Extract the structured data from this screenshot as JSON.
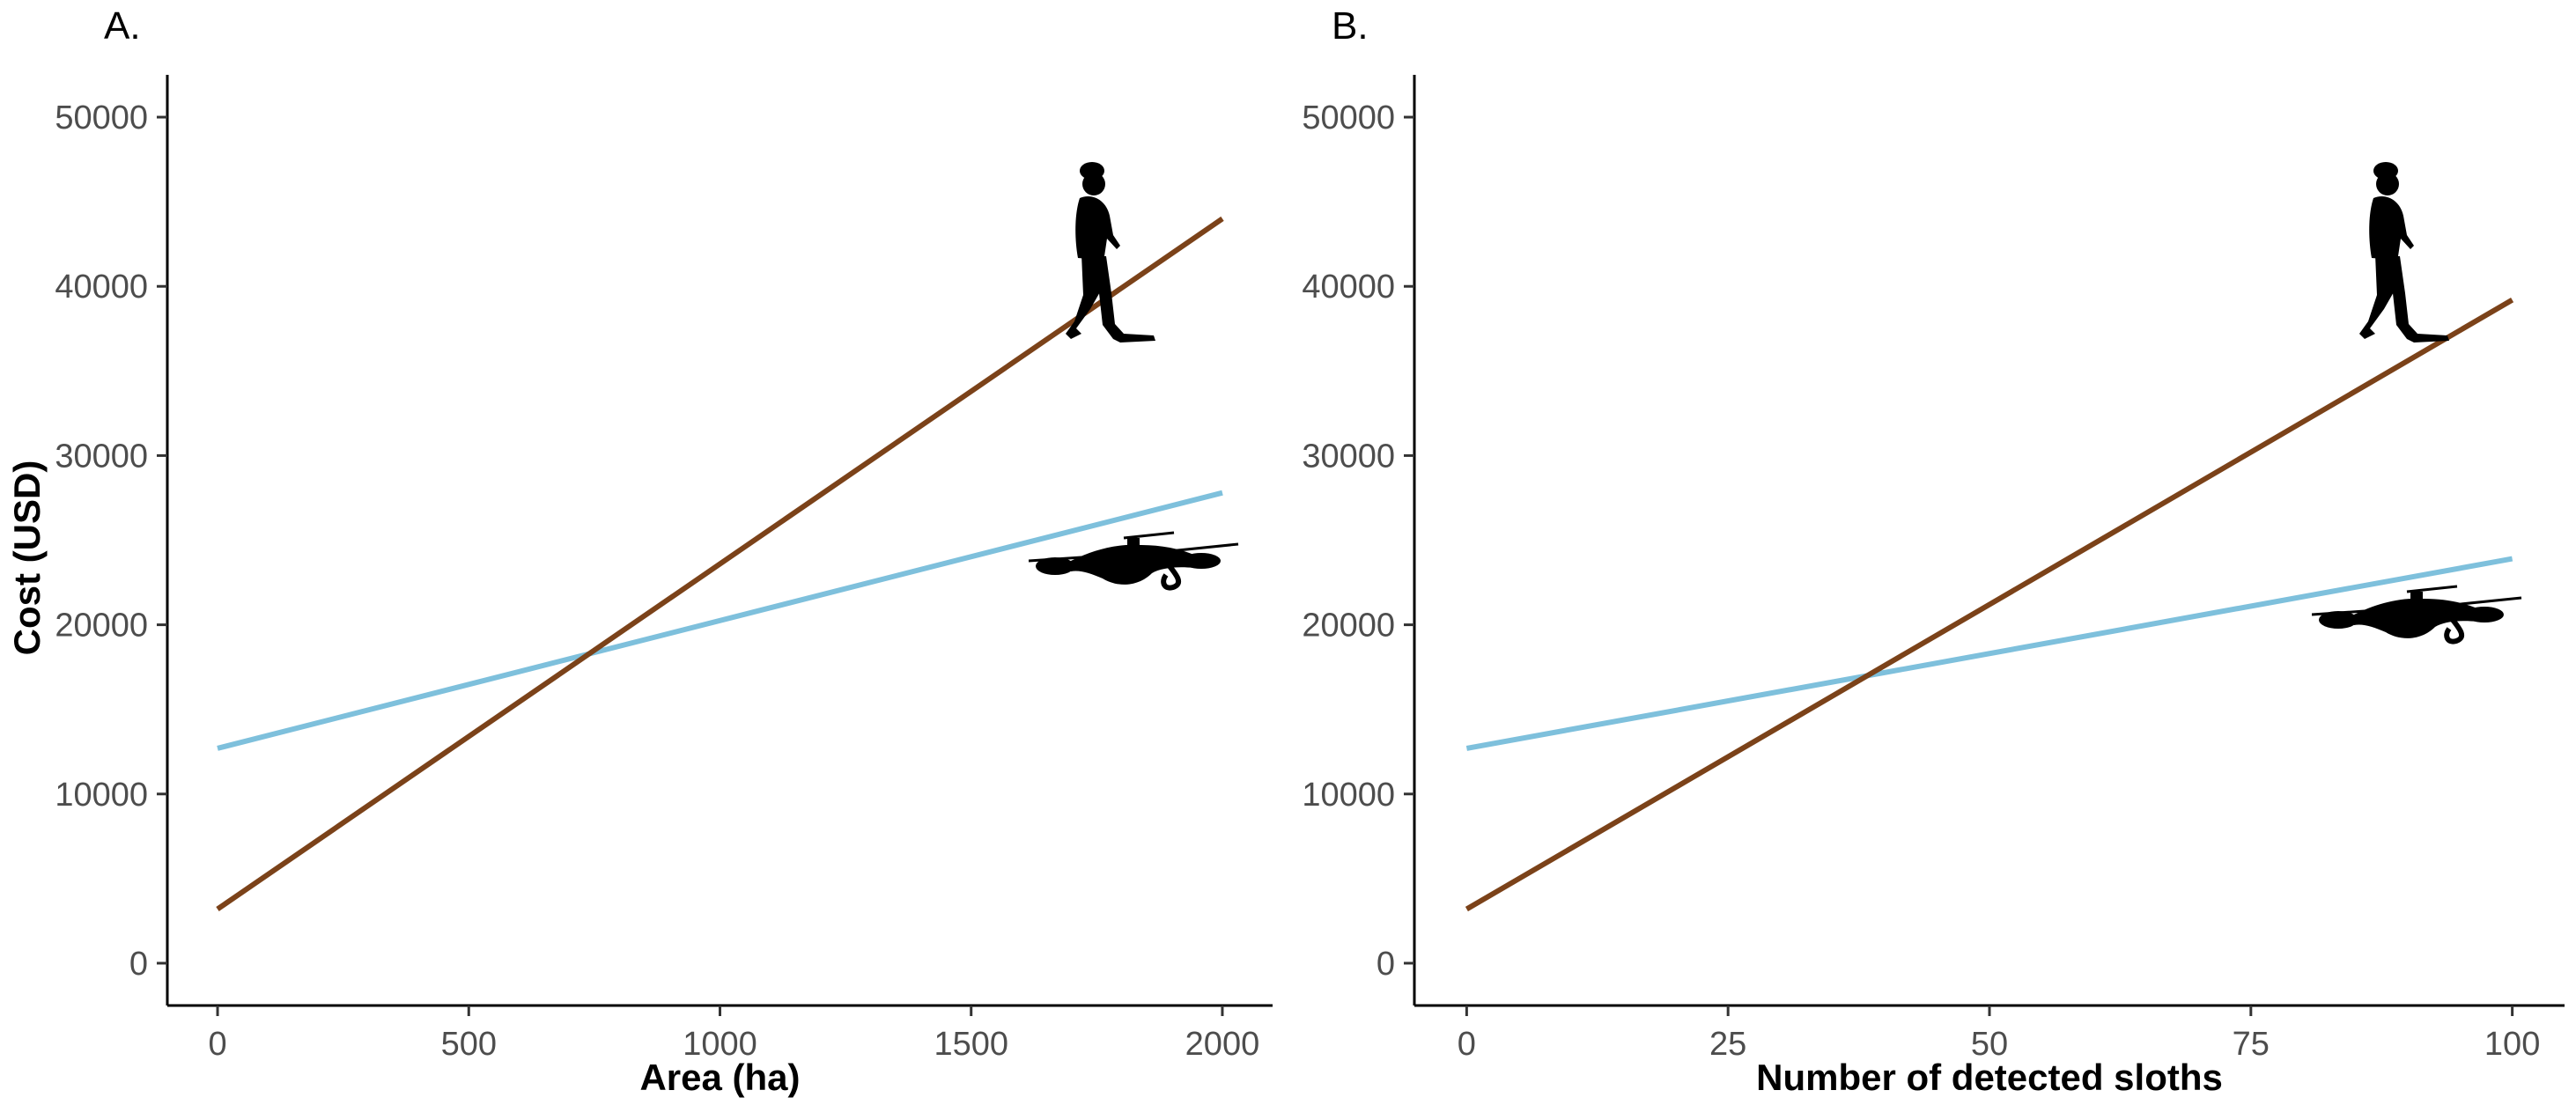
{
  "colors": {
    "walker_line": "#7B4219",
    "drone_line": "#7EC0DC",
    "silhouette": "#000000"
  },
  "icons": [
    "walking-person-icon",
    "drone-icon"
  ],
  "chart_data": [
    {
      "type": "line",
      "panel_label": "A.",
      "xlabel": "Area (ha)",
      "ylabel": "Cost (USD)",
      "xlim": [
        -100,
        2100
      ],
      "ylim": [
        -2500,
        52500
      ],
      "xticks": [
        0,
        500,
        1000,
        1500,
        2000
      ],
      "xtick_labels": [
        "0",
        "500",
        "1000",
        "1500",
        "2000"
      ],
      "yticks": [
        0,
        10000,
        20000,
        30000,
        40000,
        50000
      ],
      "ytick_labels": [
        "0",
        "10000",
        "20000",
        "30000",
        "40000",
        "50000"
      ],
      "grid": false,
      "legend": "none",
      "series": [
        {
          "icon": "walking-person-icon",
          "color": "#7B4219",
          "x": [
            0,
            2000
          ],
          "y": [
            3200,
            44000
          ]
        },
        {
          "icon": "drone-icon",
          "color": "#7EC0DC",
          "x": [
            0,
            2000
          ],
          "y": [
            12700,
            27800
          ]
        }
      ]
    },
    {
      "type": "line",
      "panel_label": "B.",
      "xlabel": "Number of detected sloths",
      "ylabel": "",
      "xlim": [
        -5,
        105
      ],
      "ylim": [
        -2500,
        52500
      ],
      "xticks": [
        0,
        25,
        50,
        75,
        100
      ],
      "xtick_labels": [
        "0",
        "25",
        "50",
        "75",
        "100"
      ],
      "yticks": [
        0,
        10000,
        20000,
        30000,
        40000,
        50000
      ],
      "ytick_labels": [
        "0",
        "10000",
        "20000",
        "30000",
        "40000",
        "50000"
      ],
      "grid": false,
      "legend": "none",
      "series": [
        {
          "icon": "walking-person-icon",
          "color": "#7B4219",
          "x": [
            0,
            100
          ],
          "y": [
            3200,
            39200
          ]
        },
        {
          "icon": "drone-icon",
          "color": "#7EC0DC",
          "x": [
            0,
            100
          ],
          "y": [
            12700,
            23900
          ]
        }
      ]
    }
  ]
}
